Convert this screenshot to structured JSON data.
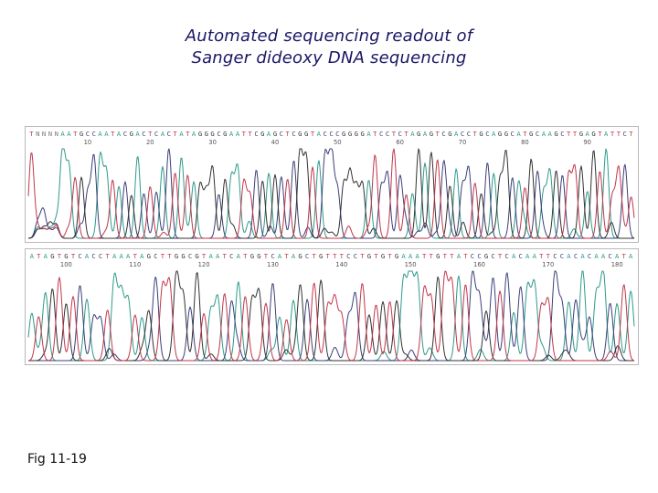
{
  "title": {
    "line1": "Automated sequencing readout of",
    "line2": "Sanger dideoxy DNA sequencing"
  },
  "figure_label": "Fig 11-19",
  "base_colors": {
    "A": "#2e9a8a",
    "C": "#3b3f7a",
    "G": "#333333",
    "T": "#c2364a",
    "N": "#777777"
  },
  "tracks": [
    {
      "sequence": "TNNNNAATGCCAATACGACTCACTATAGGGCGAATTCGAGCTCGGTACCCGGGGATCCTCTAGAGTCGACCTGCAGGCATGCAAGCTTGAGTATTCT",
      "position_labels": [
        "10",
        "20",
        "30",
        "40",
        "50",
        "60",
        "70",
        "80",
        "90"
      ]
    },
    {
      "sequence": "ATAGTGTCACCTAAATAGCTTGGCGTAATCATGGTCATAGCTGTTTCCTGTGTGAAATTGTTATCCGCTCACAATTCCACACAACATA",
      "position_labels": [
        "100",
        "110",
        "120",
        "130",
        "140",
        "150",
        "160",
        "170",
        "180"
      ]
    }
  ]
}
